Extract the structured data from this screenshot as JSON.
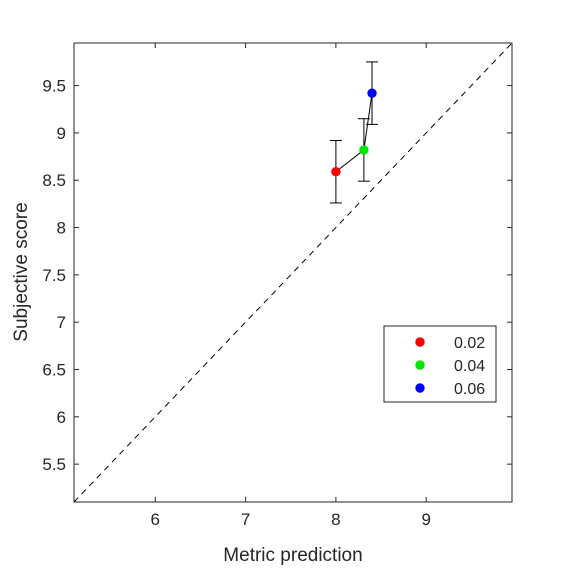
{
  "chart_data": {
    "type": "scatter",
    "title": "",
    "xlabel": "Metric prediction",
    "ylabel": "Subjective score",
    "xlim": [
      5.1,
      9.95
    ],
    "ylim": [
      5.1,
      9.95
    ],
    "xticks": [
      6,
      7,
      8,
      9
    ],
    "xtick_labels": [
      "6",
      "7",
      "8",
      "9"
    ],
    "yticks": [
      5.5,
      6,
      6.5,
      7,
      7.5,
      8,
      8.5,
      9,
      9.5
    ],
    "ytick_labels": [
      "5.5",
      "6",
      "6.5",
      "7",
      "7.5",
      "8",
      "8.5",
      "9",
      "9.5"
    ],
    "grid": false,
    "legend_position": "right",
    "reference_line": "diagonal y = x, dashed",
    "connecting_line": true,
    "points": [
      {
        "label": "0.02",
        "x": 8.0,
        "y": 8.59,
        "err_low": 8.26,
        "err_high": 8.92,
        "color": "#ff0000"
      },
      {
        "label": "0.04",
        "x": 8.31,
        "y": 8.82,
        "err_low": 8.49,
        "err_high": 9.15,
        "color": "#00e600"
      },
      {
        "label": "0.06",
        "x": 8.4,
        "y": 9.42,
        "err_low": 9.09,
        "err_high": 9.75,
        "color": "#0000ff"
      }
    ]
  }
}
